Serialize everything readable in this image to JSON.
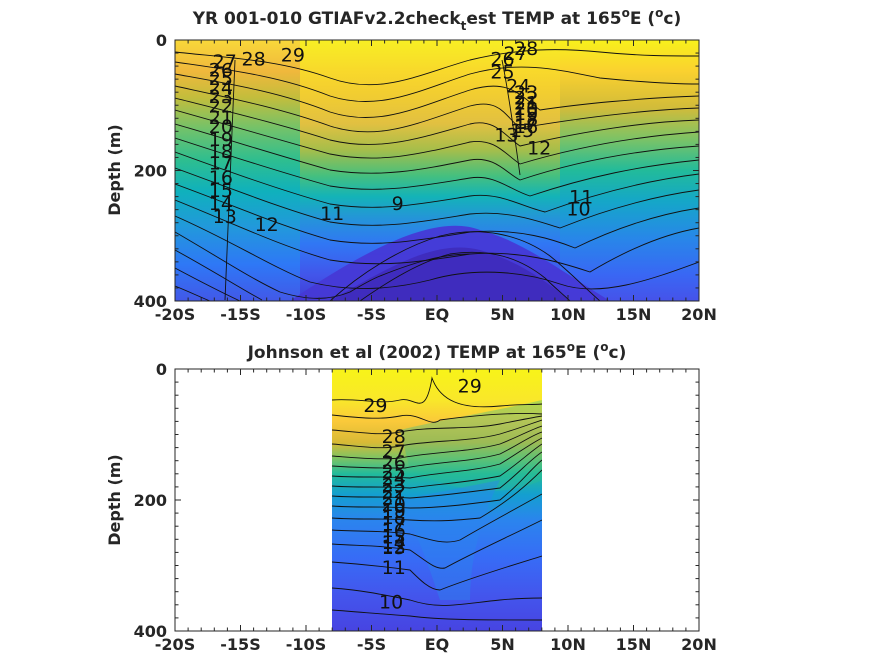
{
  "chart_data": [
    {
      "type": "contour",
      "title_main": "YR 001-010 GTIAFv2.2check",
      "title_sub": "t",
      "title_tail": "est TEMP at 165",
      "title_deg": "o",
      "title_end": "E (",
      "title_unit_sup": "o",
      "title_unit": "c)",
      "xlabel": "",
      "ylabel": "Depth (m)",
      "xlim": [
        -20,
        20
      ],
      "ylim": [
        0,
        400
      ],
      "y_reversed": true,
      "x_ticks": [
        "-20S",
        "-15S",
        "-10S",
        "-5S",
        "EQ",
        "5N",
        "10N",
        "15N",
        "20N"
      ],
      "y_ticks": [
        "0",
        "200",
        "400"
      ],
      "data_extent": [
        -20,
        20
      ],
      "colorscale": [
        "#3e26a8",
        "#4744e8",
        "#3074fb",
        "#2299d9",
        "#0fb3bc",
        "#2ebe8f",
        "#8bc45c",
        "#d1ba35",
        "#fdbf3b",
        "#f8fa0d"
      ],
      "contour_labels": [
        {
          "text": "29",
          "x": -11.0,
          "y": 22
        },
        {
          "text": "28",
          "x": -14.0,
          "y": 28
        },
        {
          "text": "27",
          "x": -16.2,
          "y": 32
        },
        {
          "text": "26",
          "x": -16.5,
          "y": 45
        },
        {
          "text": "25",
          "x": -16.5,
          "y": 58
        },
        {
          "text": "24",
          "x": -16.5,
          "y": 72
        },
        {
          "text": "23",
          "x": -16.5,
          "y": 86
        },
        {
          "text": "22",
          "x": -16.5,
          "y": 100
        },
        {
          "text": "21",
          "x": -16.5,
          "y": 118
        },
        {
          "text": "20",
          "x": -16.5,
          "y": 132
        },
        {
          "text": "19",
          "x": -16.5,
          "y": 152
        },
        {
          "text": "18",
          "x": -16.5,
          "y": 170
        },
        {
          "text": "17",
          "x": -16.5,
          "y": 188
        },
        {
          "text": "16",
          "x": -16.5,
          "y": 210
        },
        {
          "text": "15",
          "x": -16.5,
          "y": 230
        },
        {
          "text": "14",
          "x": -16.5,
          "y": 250
        },
        {
          "text": "13",
          "x": -16.2,
          "y": 270
        },
        {
          "text": "12",
          "x": -13.0,
          "y": 282
        },
        {
          "text": "11",
          "x": -8.0,
          "y": 265
        },
        {
          "text": "9",
          "x": -3.0,
          "y": 250
        },
        {
          "text": "28",
          "x": 6.8,
          "y": 12
        },
        {
          "text": "27",
          "x": 6.0,
          "y": 20
        },
        {
          "text": "26",
          "x": 5.0,
          "y": 28
        },
        {
          "text": "25",
          "x": 5.0,
          "y": 48
        },
        {
          "text": "24",
          "x": 6.2,
          "y": 70
        },
        {
          "text": "23",
          "x": 6.8,
          "y": 80
        },
        {
          "text": "22",
          "x": 6.8,
          "y": 88
        },
        {
          "text": "21",
          "x": 6.8,
          "y": 96
        },
        {
          "text": "20",
          "x": 6.8,
          "y": 104
        },
        {
          "text": "19",
          "x": 6.8,
          "y": 112
        },
        {
          "text": "18",
          "x": 6.8,
          "y": 120
        },
        {
          "text": "17",
          "x": 6.8,
          "y": 126
        },
        {
          "text": "16",
          "x": 6.8,
          "y": 132
        },
        {
          "text": "15",
          "x": 6.5,
          "y": 138
        },
        {
          "text": "13",
          "x": 5.3,
          "y": 145
        },
        {
          "text": "12",
          "x": 7.8,
          "y": 165
        },
        {
          "text": "11",
          "x": 11.0,
          "y": 240
        },
        {
          "text": "10",
          "x": 10.8,
          "y": 258
        }
      ]
    },
    {
      "type": "contour",
      "title_main": "Johnson et al (2002) TEMP at 165",
      "title_deg": "o",
      "title_end": "E (",
      "title_unit_sup": "o",
      "title_unit": "c)",
      "xlabel": "",
      "ylabel": "Depth (m)",
      "xlim": [
        -20,
        20
      ],
      "ylim": [
        0,
        400
      ],
      "y_reversed": true,
      "x_ticks": [
        "-20S",
        "-15S",
        "-10S",
        "-5S",
        "EQ",
        "5N",
        "10N",
        "15N",
        "20N"
      ],
      "y_ticks": [
        "0",
        "200",
        "400"
      ],
      "data_extent": [
        -8,
        8
      ],
      "colorscale": [
        "#3e26a8",
        "#4744e8",
        "#3074fb",
        "#2299d9",
        "#0fb3bc",
        "#2ebe8f",
        "#8bc45c",
        "#d1ba35",
        "#fdbf3b",
        "#f8fa0d"
      ],
      "contour_labels": [
        {
          "text": "29",
          "x": 2.5,
          "y": 25
        },
        {
          "text": "29",
          "x": -4.7,
          "y": 55
        },
        {
          "text": "28",
          "x": -3.3,
          "y": 102
        },
        {
          "text": "27",
          "x": -3.3,
          "y": 125
        },
        {
          "text": "26",
          "x": -3.3,
          "y": 142
        },
        {
          "text": "25",
          "x": -3.3,
          "y": 156
        },
        {
          "text": "24",
          "x": -3.3,
          "y": 166
        },
        {
          "text": "23",
          "x": -3.3,
          "y": 176
        },
        {
          "text": "22",
          "x": -3.3,
          "y": 186
        },
        {
          "text": "21",
          "x": -3.3,
          "y": 196
        },
        {
          "text": "20",
          "x": -3.3,
          "y": 206
        },
        {
          "text": "19",
          "x": -3.3,
          "y": 216
        },
        {
          "text": "18",
          "x": -3.3,
          "y": 226
        },
        {
          "text": "17",
          "x": -3.3,
          "y": 236
        },
        {
          "text": "16",
          "x": -3.3,
          "y": 246
        },
        {
          "text": "15",
          "x": -3.3,
          "y": 256
        },
        {
          "text": "14",
          "x": -3.3,
          "y": 264
        },
        {
          "text": "13",
          "x": -3.3,
          "y": 272
        },
        {
          "text": "12",
          "x": -3.3,
          "y": 270
        },
        {
          "text": "11",
          "x": -3.3,
          "y": 302
        },
        {
          "text": "10",
          "x": -3.5,
          "y": 355
        }
      ]
    }
  ]
}
